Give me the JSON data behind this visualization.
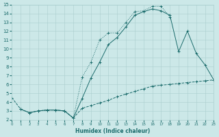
{
  "xlabel": "Humidex (Indice chaleur)",
  "xlim": [
    0,
    23
  ],
  "ylim": [
    2,
    15
  ],
  "xticks": [
    0,
    1,
    2,
    3,
    4,
    5,
    6,
    7,
    8,
    9,
    10,
    11,
    12,
    13,
    14,
    15,
    16,
    17,
    18,
    19,
    20,
    21,
    22,
    23
  ],
  "yticks": [
    2,
    3,
    4,
    5,
    6,
    7,
    8,
    9,
    10,
    11,
    12,
    13,
    14,
    15
  ],
  "bg_color": "#cce8e8",
  "grid_color": "#aacece",
  "line_color": "#1a6b6b",
  "line1_x": [
    0,
    1,
    2,
    3,
    4,
    5,
    6,
    7,
    8,
    9,
    10,
    11,
    12,
    13,
    14,
    15,
    16,
    17,
    18,
    19,
    20,
    21,
    22,
    23
  ],
  "line1_y": [
    4.5,
    3.2,
    2.8,
    3.0,
    3.1,
    3.1,
    3.0,
    2.2,
    3.3,
    3.6,
    3.9,
    4.2,
    4.6,
    4.9,
    5.2,
    5.5,
    5.8,
    5.9,
    6.0,
    6.1,
    6.2,
    6.3,
    6.4,
    6.5
  ],
  "line2_x": [
    1,
    2,
    3,
    4,
    5,
    6,
    7,
    8,
    9,
    10,
    11,
    12,
    13,
    14,
    15,
    16,
    17,
    18
  ],
  "line2_y": [
    3.2,
    2.8,
    3.0,
    3.1,
    3.1,
    3.0,
    2.2,
    6.8,
    8.5,
    11.0,
    11.8,
    11.8,
    13.0,
    14.2,
    14.3,
    14.8,
    14.8,
    13.6
  ],
  "line3_x": [
    1,
    2,
    3,
    4,
    5,
    6,
    7,
    8,
    9,
    10,
    11,
    12,
    13,
    14,
    15,
    16,
    17,
    18,
    19,
    20,
    21,
    22,
    23
  ],
  "line3_y": [
    3.2,
    2.8,
    3.0,
    3.1,
    3.1,
    3.0,
    2.2,
    4.4,
    6.7,
    8.5,
    10.5,
    11.3,
    12.5,
    13.8,
    14.2,
    14.5,
    14.3,
    13.8,
    9.7,
    12.0,
    9.5,
    8.2,
    6.5
  ]
}
